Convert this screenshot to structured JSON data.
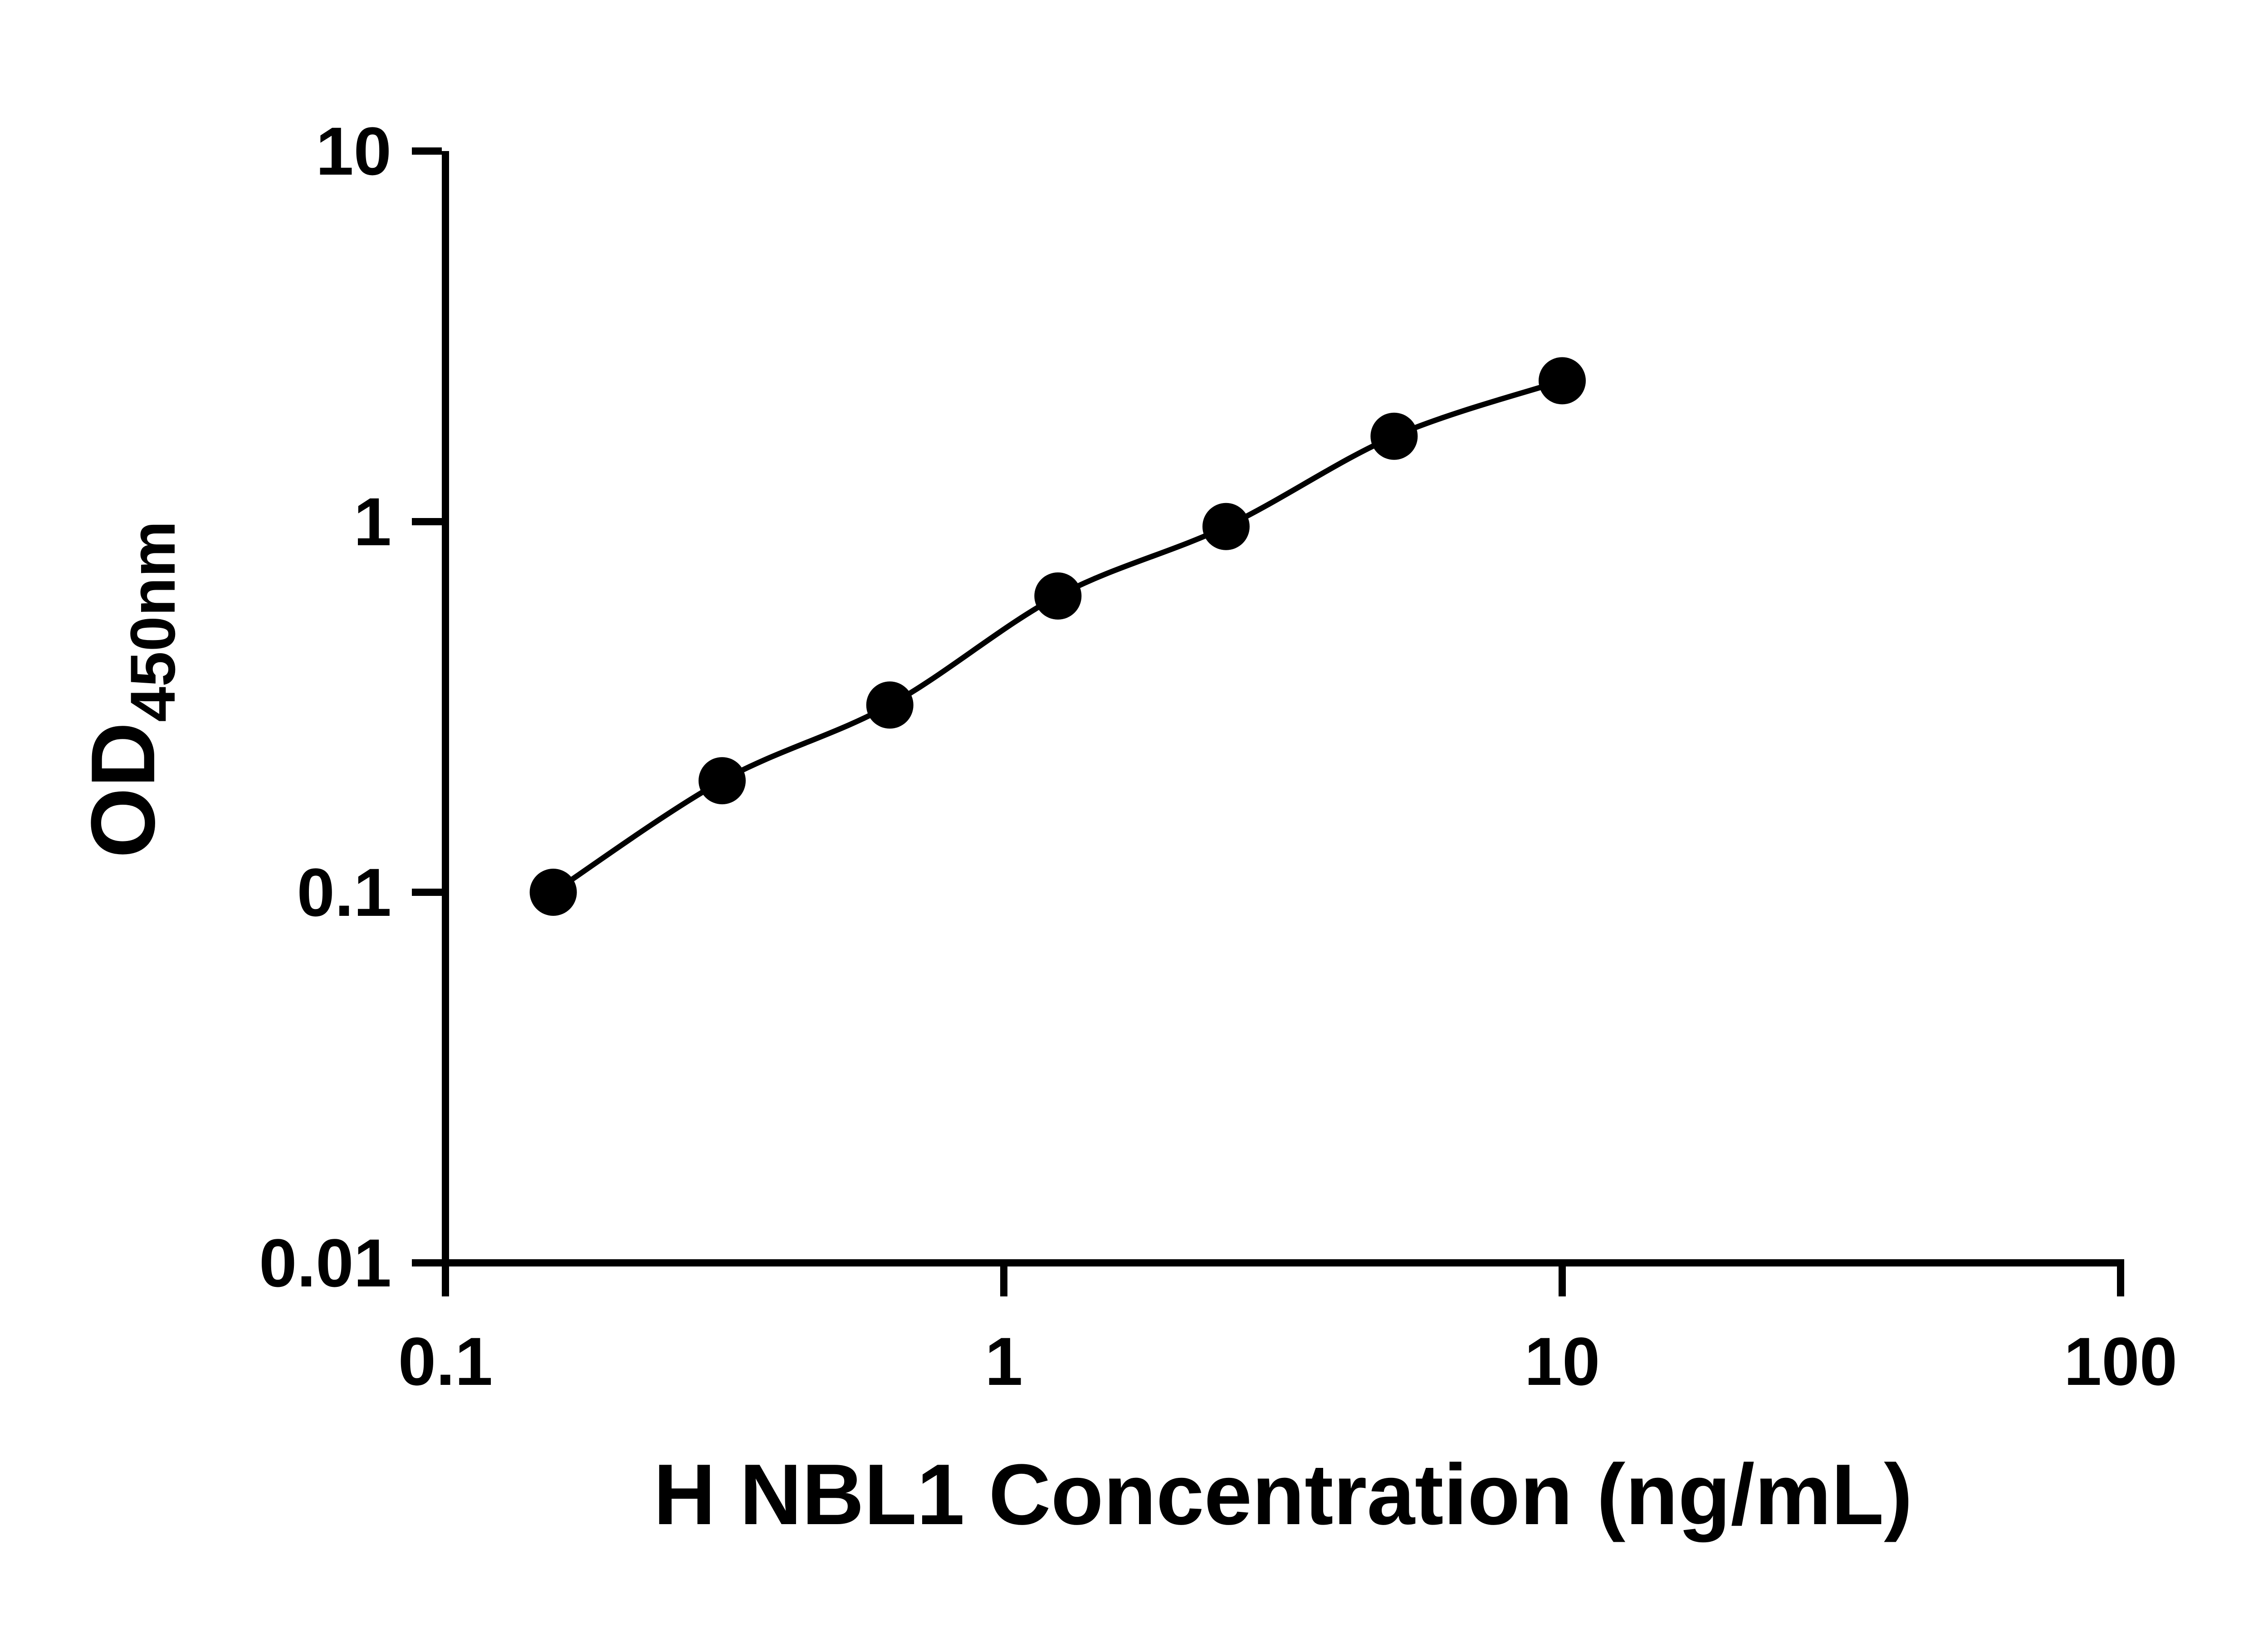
{
  "chart_data": {
    "type": "scatter",
    "title": "",
    "xlabel": "H NBL1 Concentration (ng/mL)",
    "ylabel": "OD450nm",
    "ylabel_main": "OD",
    "ylabel_sub": "450nm",
    "x_scale": "log",
    "y_scale": "log",
    "xlim": [
      0.1,
      100
    ],
    "ylim": [
      0.01,
      10
    ],
    "x_tick_labels": [
      "0.1",
      "1",
      "10",
      "100"
    ],
    "y_tick_labels": [
      "0.01",
      "0.1",
      "1",
      "10"
    ],
    "grid": false,
    "legend": false,
    "series": [
      {
        "x": [
          0.156,
          0.313,
          0.625,
          1.25,
          2.5,
          5,
          10
        ],
        "y": [
          0.1,
          0.2,
          0.32,
          0.63,
          0.97,
          1.7,
          2.4
        ],
        "marker": "circle",
        "line": "smooth",
        "color": "#000000"
      }
    ]
  },
  "colors": {
    "background": "#ffffff",
    "axis": "#000000",
    "marker": "#000000",
    "line": "#000000",
    "text": "#000000"
  }
}
